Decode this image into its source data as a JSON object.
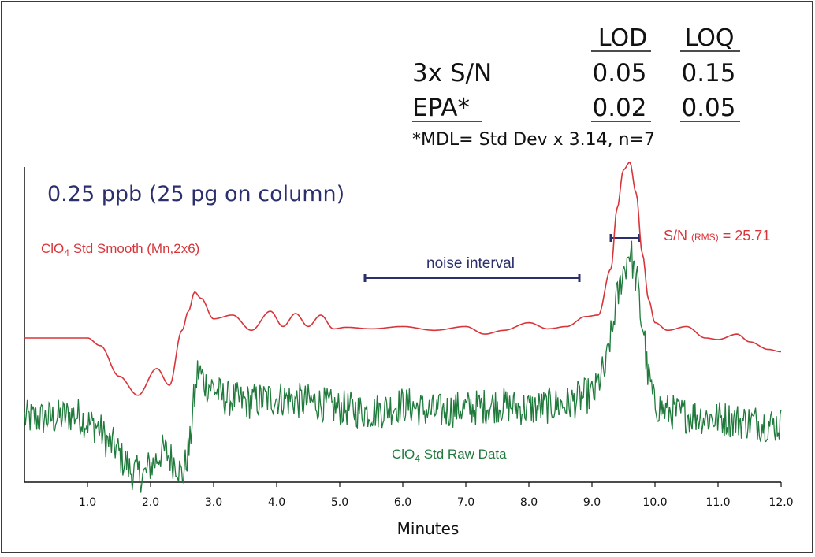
{
  "chart_data": {
    "type": "line",
    "xlabel": "Minutes",
    "xlim": [
      0.0,
      12.0
    ],
    "x_ticks": [
      "1.0",
      "2.0",
      "3.0",
      "4.0",
      "5.0",
      "6.0",
      "7.0",
      "8.0",
      "9.0",
      "10.0",
      "11.0",
      "12.0"
    ],
    "concentration_label": "0.25 ppb (25 pg on column)",
    "series": [
      {
        "name": "ClO4 Std Smooth (Mn,2x6)",
        "label_prefix": "ClO",
        "label_sub": "4",
        "label_suffix": " Std Smooth (Mn,2x6)",
        "color": "#d8353a",
        "x": [
          0.0,
          0.5,
          1.0,
          1.2,
          1.5,
          1.8,
          2.1,
          2.3,
          2.5,
          2.6,
          2.7,
          2.8,
          3.0,
          3.3,
          3.6,
          3.9,
          4.1,
          4.3,
          4.5,
          4.7,
          4.9,
          5.1,
          5.5,
          6.0,
          6.5,
          7.0,
          7.3,
          7.6,
          8.0,
          8.3,
          8.6,
          8.9,
          9.1,
          9.3,
          9.4,
          9.5,
          9.6,
          9.7,
          9.8,
          9.9,
          10.0,
          10.2,
          10.5,
          10.8,
          11.0,
          11.3,
          11.5,
          11.8,
          12.0
        ],
        "y": [
          0.0,
          0.0,
          0.0,
          -0.1,
          -0.5,
          -0.75,
          -0.4,
          -0.62,
          0.1,
          0.35,
          0.6,
          0.52,
          0.25,
          0.3,
          0.1,
          0.35,
          0.15,
          0.32,
          0.15,
          0.3,
          0.12,
          0.14,
          0.12,
          0.15,
          0.1,
          0.15,
          0.05,
          0.1,
          0.2,
          0.12,
          0.15,
          0.28,
          0.3,
          0.9,
          1.7,
          2.2,
          2.3,
          1.9,
          1.1,
          0.5,
          0.2,
          0.1,
          0.15,
          0.0,
          -0.02,
          0.05,
          -0.05,
          -0.15,
          -0.18
        ]
      },
      {
        "name": "ClO4 Std Raw Data",
        "label_prefix": "ClO",
        "label_sub": "4",
        "label_suffix": " Std Raw Data",
        "color": "#1f7a3c",
        "x": [
          0.0,
          0.4,
          0.8,
          1.1,
          1.4,
          1.6,
          1.7,
          1.9,
          2.0,
          2.2,
          2.4,
          2.5,
          2.55,
          2.6,
          2.7,
          2.75,
          2.9,
          3.2,
          3.5,
          4.0,
          4.5,
          5.0,
          5.5,
          6.0,
          6.5,
          7.0,
          7.5,
          8.0,
          8.5,
          9.0,
          9.2,
          9.3,
          9.4,
          9.5,
          9.6,
          9.7,
          9.8,
          9.9,
          10.0,
          10.2,
          10.5,
          11.0,
          11.5,
          12.0
        ],
        "y": [
          -1.2,
          -1.2,
          -1.15,
          -1.3,
          -1.6,
          -1.85,
          -2.0,
          -2.05,
          -1.9,
          -1.7,
          -1.85,
          -2.05,
          -1.9,
          -1.7,
          -0.9,
          -0.5,
          -0.7,
          -0.9,
          -0.95,
          -0.9,
          -0.95,
          -1.05,
          -1.1,
          -1.0,
          -1.1,
          -1.05,
          -1.0,
          -1.05,
          -1.0,
          -0.85,
          -0.5,
          0.0,
          0.6,
          1.0,
          1.3,
          0.9,
          0.2,
          -0.6,
          -1.0,
          -1.1,
          -1.15,
          -1.2,
          -1.25,
          -1.3
        ]
      }
    ],
    "noise_interval": {
      "label": "noise interval",
      "x_start": 5.4,
      "x_end": 8.8
    },
    "signal_to_noise": {
      "prefix": "S/N ",
      "sub": "(RMS)",
      "suffix": " = 25.71",
      "x_start": 9.3,
      "x_end": 9.75
    }
  },
  "table": {
    "columns": [
      "LOD",
      "LOQ"
    ],
    "rows": [
      {
        "label": "3x S/N",
        "lod": "0.05",
        "loq": "0.15"
      },
      {
        "label": "EPA*",
        "lod": "0.02",
        "loq": "0.05"
      }
    ],
    "footnote": "*MDL= Std Dev x 3.14, n=7"
  }
}
